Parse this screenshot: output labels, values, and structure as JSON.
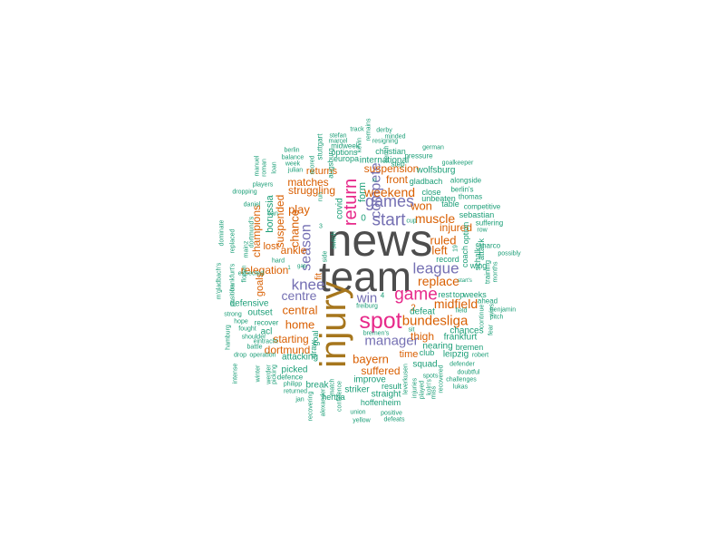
{
  "palette": {
    "gray": "#4d4d4d",
    "olive": "#a6761d",
    "magenta": "#e7298a",
    "purple": "#7570b3",
    "orange": "#d95f02",
    "teal": "#1b9e77"
  },
  "words": [
    {
      "text": "news",
      "color": "gray"
    },
    {
      "text": "team",
      "color": "gray"
    },
    {
      "text": "injury",
      "color": "olive"
    },
    {
      "text": "spot",
      "color": "magenta"
    },
    {
      "text": "return",
      "color": "magenta"
    },
    {
      "text": "game",
      "color": "magenta"
    },
    {
      "text": "start",
      "color": "purple"
    },
    {
      "text": "games",
      "color": "purple"
    },
    {
      "text": "compete",
      "color": "purple"
    },
    {
      "text": "league",
      "color": "purple"
    },
    {
      "text": "knee",
      "color": "purple"
    },
    {
      "text": "season",
      "color": "purple"
    },
    {
      "text": "manager",
      "color": "purple"
    },
    {
      "text": "centre",
      "color": "purple"
    },
    {
      "text": "win",
      "color": "purple"
    },
    {
      "text": "bundesliga",
      "color": "orange"
    },
    {
      "text": "replace",
      "color": "orange"
    },
    {
      "text": "muscle",
      "color": "orange"
    },
    {
      "text": "weekend",
      "color": "orange"
    },
    {
      "text": "midfield",
      "color": "orange"
    },
    {
      "text": "central",
      "color": "orange"
    },
    {
      "text": "home",
      "color": "orange"
    },
    {
      "text": "chance",
      "color": "orange"
    },
    {
      "text": "play",
      "color": "orange"
    },
    {
      "text": "bayern",
      "color": "orange"
    },
    {
      "text": "left",
      "color": "orange"
    },
    {
      "text": "ruled",
      "color": "orange"
    },
    {
      "text": "won",
      "color": "orange"
    },
    {
      "text": "matches",
      "color": "orange"
    },
    {
      "text": "relegation",
      "color": "orange"
    },
    {
      "text": "suspension",
      "color": "orange"
    },
    {
      "text": "struggling",
      "color": "orange"
    },
    {
      "text": "starting",
      "color": "orange"
    },
    {
      "text": "suffered",
      "color": "orange"
    },
    {
      "text": "champions",
      "color": "orange"
    },
    {
      "text": "suspended",
      "color": "orange"
    },
    {
      "text": "ankle",
      "color": "orange"
    },
    {
      "text": "thigh",
      "color": "orange"
    },
    {
      "text": "dortmund",
      "color": "orange"
    },
    {
      "text": "front",
      "color": "orange"
    },
    {
      "text": "injured",
      "color": "orange"
    },
    {
      "text": "returns",
      "color": "orange"
    },
    {
      "text": "lost",
      "color": "orange"
    },
    {
      "text": "time",
      "color": "orange"
    },
    {
      "text": "fit",
      "color": "orange"
    },
    {
      "text": "goals",
      "color": "orange"
    },
    {
      "text": "2",
      "color": "orange"
    },
    {
      "text": "borussia",
      "color": "teal"
    },
    {
      "text": "form",
      "color": "teal"
    },
    {
      "text": "covid",
      "color": "teal"
    },
    {
      "text": "0",
      "color": "teal"
    },
    {
      "text": "defensive",
      "color": "teal"
    },
    {
      "text": "outset",
      "color": "teal"
    },
    {
      "text": "acl",
      "color": "teal"
    },
    {
      "text": "attacking",
      "color": "teal"
    },
    {
      "text": "picked",
      "color": "teal"
    },
    {
      "text": "break",
      "color": "teal"
    },
    {
      "text": "draw",
      "color": "teal"
    },
    {
      "text": "goal",
      "color": "teal"
    },
    {
      "text": "improve",
      "color": "teal"
    },
    {
      "text": "defeat",
      "color": "teal"
    },
    {
      "text": "squad",
      "color": "teal"
    },
    {
      "text": "result",
      "color": "teal"
    },
    {
      "text": "straight",
      "color": "teal"
    },
    {
      "text": "hertha",
      "color": "teal"
    },
    {
      "text": "hoffenheim",
      "color": "teal"
    },
    {
      "text": "striker",
      "color": "teal"
    },
    {
      "text": "nearing",
      "color": "teal"
    },
    {
      "text": "chances",
      "color": "teal"
    },
    {
      "text": "frankfurt",
      "color": "teal"
    },
    {
      "text": "leipzig",
      "color": "teal"
    },
    {
      "text": "bremen",
      "color": "teal"
    },
    {
      "text": "club",
      "color": "teal"
    },
    {
      "text": "international",
      "color": "teal"
    },
    {
      "text": "europa",
      "color": "teal"
    },
    {
      "text": "options",
      "color": "teal"
    },
    {
      "text": "midweek",
      "color": "teal"
    },
    {
      "text": "christian",
      "color": "teal"
    },
    {
      "text": "wolfsburg",
      "color": "teal"
    },
    {
      "text": "close",
      "color": "teal"
    },
    {
      "text": "unbeaten",
      "color": "teal"
    },
    {
      "text": "table",
      "color": "teal"
    },
    {
      "text": "gladbach",
      "color": "teal"
    },
    {
      "text": "sebastian",
      "color": "teal"
    },
    {
      "text": "record",
      "color": "teal"
    },
    {
      "text": "coach",
      "color": "teal"
    },
    {
      "text": "option",
      "color": "teal"
    },
    {
      "text": "schalke",
      "color": "teal"
    },
    {
      "text": "attack",
      "color": "teal"
    },
    {
      "text": "wing",
      "color": "teal"
    },
    {
      "text": "weeks",
      "color": "teal"
    },
    {
      "text": "rest",
      "color": "teal"
    },
    {
      "text": "top",
      "color": "teal"
    },
    {
      "text": "ahead",
      "color": "teal"
    },
    {
      "text": "training",
      "color": "teal"
    },
    {
      "text": "marco",
      "color": "teal"
    },
    {
      "text": "suffering",
      "color": "teal"
    },
    {
      "text": "competitive",
      "color": "teal"
    },
    {
      "text": "row",
      "color": "teal"
    },
    {
      "text": "thomas",
      "color": "teal"
    },
    {
      "text": "berlin's",
      "color": "teal"
    },
    {
      "text": "alongside",
      "color": "teal"
    },
    {
      "text": "goalkeeper",
      "color": "teal"
    },
    {
      "text": "step",
      "color": "teal"
    },
    {
      "text": "pressure",
      "color": "teal"
    },
    {
      "text": "german",
      "color": "teal"
    },
    {
      "text": "bench",
      "color": "teal"
    },
    {
      "text": "resigning",
      "color": "teal"
    },
    {
      "text": "minded",
      "color": "teal"
    },
    {
      "text": "derby",
      "color": "teal"
    },
    {
      "text": "remains",
      "color": "teal"
    },
    {
      "text": "track",
      "color": "teal"
    },
    {
      "text": "kevin",
      "color": "teal"
    },
    {
      "text": "stefan",
      "color": "teal"
    },
    {
      "text": "marcel",
      "color": "teal"
    },
    {
      "text": "stuttgart",
      "color": "teal"
    },
    {
      "text": "augsburg",
      "color": "teal"
    },
    {
      "text": "berlin",
      "color": "teal"
    },
    {
      "text": "balance",
      "color": "teal"
    },
    {
      "text": "week",
      "color": "teal"
    },
    {
      "text": "julian",
      "color": "teal"
    },
    {
      "text": "scored",
      "color": "teal"
    },
    {
      "text": "loan",
      "color": "teal"
    },
    {
      "text": "xi",
      "color": "teal"
    },
    {
      "text": "manuel",
      "color": "teal"
    },
    {
      "text": "roman",
      "color": "teal"
    },
    {
      "text": "players",
      "color": "teal"
    },
    {
      "text": "dropping",
      "color": "teal"
    },
    {
      "text": "daniel",
      "color": "teal"
    },
    {
      "text": "mainz",
      "color": "teal"
    },
    {
      "text": "dortmund's",
      "color": "teal"
    },
    {
      "text": "expected",
      "color": "teal"
    },
    {
      "text": "replaced",
      "color": "teal"
    },
    {
      "text": "dominate",
      "color": "teal"
    },
    {
      "text": "m'gladbach's",
      "color": "teal"
    },
    {
      "text": "frankfurt's",
      "color": "teal"
    },
    {
      "text": "hard",
      "color": "teal"
    },
    {
      "text": "florian",
      "color": "teal"
    },
    {
      "text": "position",
      "color": "teal"
    },
    {
      "text": "strong",
      "color": "teal"
    },
    {
      "text": "hope",
      "color": "teal"
    },
    {
      "text": "recover",
      "color": "teal"
    },
    {
      "text": "fought",
      "color": "teal"
    },
    {
      "text": "shoulder",
      "color": "teal"
    },
    {
      "text": "eintracht",
      "color": "teal"
    },
    {
      "text": "battle",
      "color": "teal"
    },
    {
      "text": "operation",
      "color": "teal"
    },
    {
      "text": "drop",
      "color": "teal"
    },
    {
      "text": "defence",
      "color": "teal"
    },
    {
      "text": "philipp",
      "color": "teal"
    },
    {
      "text": "returned",
      "color": "teal"
    },
    {
      "text": "jan",
      "color": "teal"
    },
    {
      "text": "winter",
      "color": "teal"
    },
    {
      "text": "werder",
      "color": "teal"
    },
    {
      "text": "picking",
      "color": "teal"
    },
    {
      "text": "hamburg",
      "color": "teal"
    },
    {
      "text": "intense",
      "color": "teal"
    },
    {
      "text": "recovering",
      "color": "teal"
    },
    {
      "text": "alexander",
      "color": "teal"
    },
    {
      "text": "match",
      "color": "teal"
    },
    {
      "text": "confidence",
      "color": "teal"
    },
    {
      "text": "union",
      "color": "teal"
    },
    {
      "text": "yellow",
      "color": "teal"
    },
    {
      "text": "positive",
      "color": "teal"
    },
    {
      "text": "defeats",
      "color": "teal"
    },
    {
      "text": "leverkusen",
      "color": "teal"
    },
    {
      "text": "injuries",
      "color": "teal"
    },
    {
      "text": "played",
      "color": "teal"
    },
    {
      "text": "koln's",
      "color": "teal"
    },
    {
      "text": "miss",
      "color": "teal"
    },
    {
      "text": "recovered",
      "color": "teal"
    },
    {
      "text": "lukas",
      "color": "teal"
    },
    {
      "text": "challenges",
      "color": "teal"
    },
    {
      "text": "doubtful",
      "color": "teal"
    },
    {
      "text": "defender",
      "color": "teal"
    },
    {
      "text": "robert",
      "color": "teal"
    },
    {
      "text": "pitch",
      "color": "teal"
    },
    {
      "text": "benjamin",
      "color": "teal"
    },
    {
      "text": "continue",
      "color": "teal"
    },
    {
      "text": "field",
      "color": "teal"
    },
    {
      "text": "wins",
      "color": "teal"
    },
    {
      "text": "fear",
      "color": "teal"
    },
    {
      "text": "months",
      "color": "teal"
    },
    {
      "text": "possibly",
      "color": "teal"
    },
    {
      "text": "spots",
      "color": "teal"
    },
    {
      "text": "bremen's",
      "color": "teal"
    },
    {
      "text": "sit",
      "color": "teal"
    },
    {
      "text": "cup",
      "color": "teal"
    },
    {
      "text": "freiburg",
      "color": "teal"
    },
    {
      "text": "3",
      "color": "teal"
    },
    {
      "text": "4",
      "color": "teal"
    },
    {
      "text": "19",
      "color": "teal"
    },
    {
      "text": "side",
      "color": "teal"
    },
    {
      "text": "run",
      "color": "teal"
    },
    {
      "text": "switch",
      "color": "teal"
    },
    {
      "text": "ban",
      "color": "teal"
    },
    {
      "text": "1",
      "color": "teal"
    },
    {
      "text": "start's",
      "color": "teal"
    },
    {
      "text": "gap",
      "color": "teal"
    }
  ]
}
